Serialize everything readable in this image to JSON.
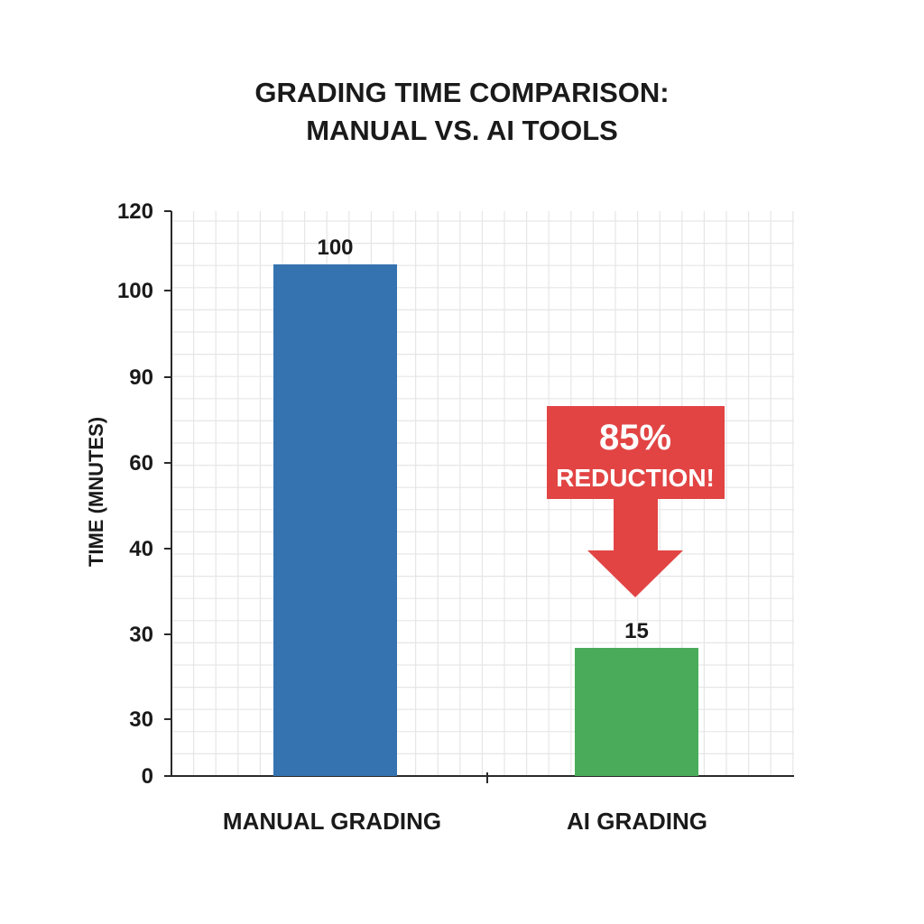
{
  "chart_data": {
    "type": "bar",
    "title_lines": [
      "GRADING TIME COMPARISON:",
      "MANUAL VS. AI TOOLS"
    ],
    "ylabel": "TIME (MNUTES)",
    "xlabel": "",
    "y_tick_labels": [
      "0",
      "30",
      "30",
      "40",
      "60",
      "90",
      "100",
      "120"
    ],
    "ylim": [
      0,
      120
    ],
    "grid": true,
    "categories": [
      "MANUAL GRADING",
      "AI GRADING"
    ],
    "values": [
      100,
      15
    ],
    "data_labels": [
      "100",
      "15"
    ],
    "colors": [
      "#3473b0",
      "#4aac5a"
    ],
    "annotation": {
      "line1": "85%",
      "line2": "REDUCTION!",
      "color": "#e24444",
      "points_to": "AI GRADING"
    }
  }
}
